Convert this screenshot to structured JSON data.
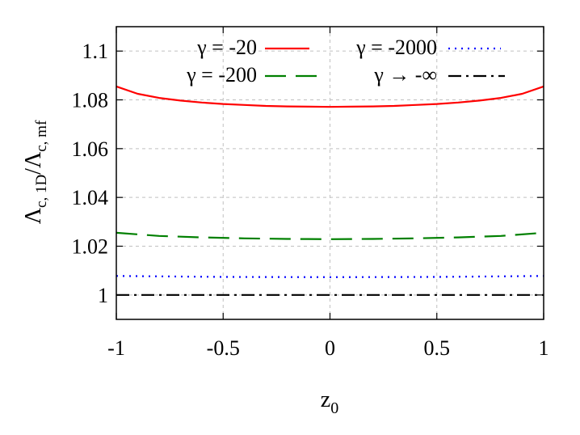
{
  "chart_data": {
    "type": "line",
    "title": "",
    "xlabel": "z",
    "xlabel_sub": "0",
    "ylabel": "Λ",
    "ylabel_sub_num": "c, 1D",
    "ylabel_mid": "/Λ",
    "ylabel_sub_den": "c, mf",
    "xlim": [
      -1,
      1
    ],
    "ylim": [
      0.99,
      1.11
    ],
    "xticks": [
      -1,
      -0.5,
      0,
      0.5,
      1
    ],
    "xtick_labels": [
      "-1",
      "-0.5",
      "0",
      "0.5",
      "1"
    ],
    "yticks": [
      1,
      1.02,
      1.04,
      1.06,
      1.08,
      1.1
    ],
    "ytick_labels": [
      "1",
      "1.02",
      "1.04",
      "1.06",
      "1.08",
      "1.1"
    ],
    "grid": true,
    "legend_position": "top",
    "series": [
      {
        "name": "γ = -20",
        "color": "#ff0000",
        "style": "solid",
        "x": [
          -1,
          -0.9,
          -0.8,
          -0.7,
          -0.6,
          -0.5,
          -0.4,
          -0.3,
          -0.2,
          -0.1,
          0,
          0.1,
          0.2,
          0.3,
          0.4,
          0.5,
          0.6,
          0.7,
          0.8,
          0.9,
          1
        ],
        "y": [
          1.0855,
          1.0825,
          1.0808,
          1.0797,
          1.0789,
          1.0783,
          1.0779,
          1.0775,
          1.0773,
          1.0772,
          1.0771,
          1.0772,
          1.0773,
          1.0775,
          1.0779,
          1.0783,
          1.0789,
          1.0797,
          1.0808,
          1.0825,
          1.0855
        ]
      },
      {
        "name": "γ = -200",
        "color": "#008000",
        "style": "dashed",
        "x": [
          -1,
          -0.8,
          -0.6,
          -0.4,
          -0.2,
          0,
          0.2,
          0.4,
          0.6,
          0.8,
          1
        ],
        "y": [
          1.0255,
          1.0242,
          1.0236,
          1.0232,
          1.023,
          1.0229,
          1.023,
          1.0232,
          1.0236,
          1.0242,
          1.0255
        ]
      },
      {
        "name": "γ = -2000",
        "color": "#0000ff",
        "style": "dotted",
        "x": [
          -1,
          -0.5,
          0,
          0.5,
          1
        ],
        "y": [
          1.0078,
          1.0074,
          1.0073,
          1.0074,
          1.0078
        ]
      },
      {
        "name": "γ → -∞",
        "color": "#000000",
        "style": "dashdot",
        "x": [
          -1,
          1
        ],
        "y": [
          1.0,
          1.0
        ]
      }
    ]
  }
}
